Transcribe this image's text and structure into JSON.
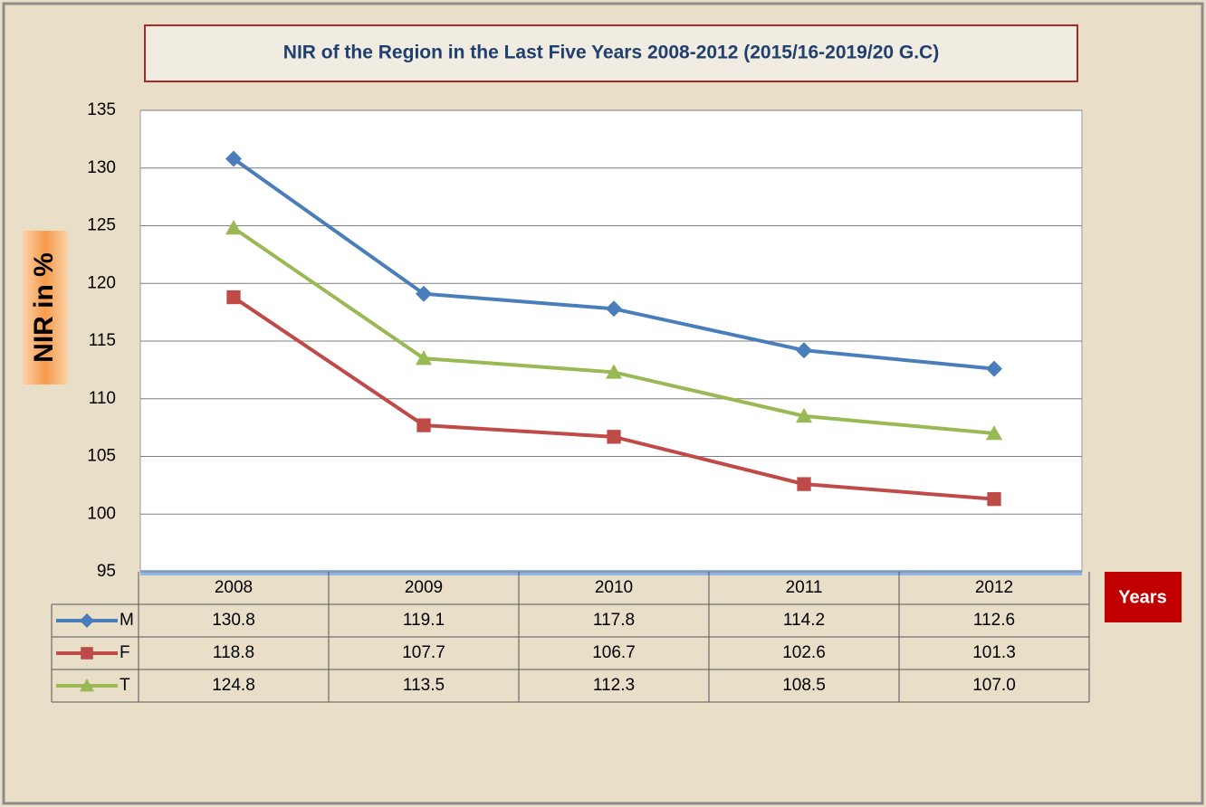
{
  "chart_data": {
    "type": "line",
    "title": "NIR of the Region in the Last Five Years 2008-2012 (2015/16-2019/20 G.C)",
    "ylabel": "NIR in %",
    "xlabel": "Years",
    "categories": [
      "2008",
      "2009",
      "2010",
      "2011",
      "2012"
    ],
    "series": [
      {
        "name": "M",
        "color": "#4a7ebb",
        "marker": "diamond",
        "values": [
          130.8,
          119.1,
          117.8,
          114.2,
          112.6
        ]
      },
      {
        "name": "F",
        "color": "#be4b48",
        "marker": "square",
        "values": [
          118.8,
          107.7,
          106.7,
          102.6,
          101.3
        ]
      },
      {
        "name": "T",
        "color": "#98b954",
        "marker": "triangle",
        "values": [
          124.8,
          113.5,
          112.3,
          108.5,
          107
        ],
        "value_labels": [
          "124.8",
          "113.5",
          "112.3",
          "108.5",
          "107.0"
        ]
      }
    ],
    "ylim": [
      95,
      135
    ],
    "yticks": [
      95,
      100,
      105,
      110,
      115,
      120,
      125,
      130,
      135
    ],
    "grid": true
  }
}
